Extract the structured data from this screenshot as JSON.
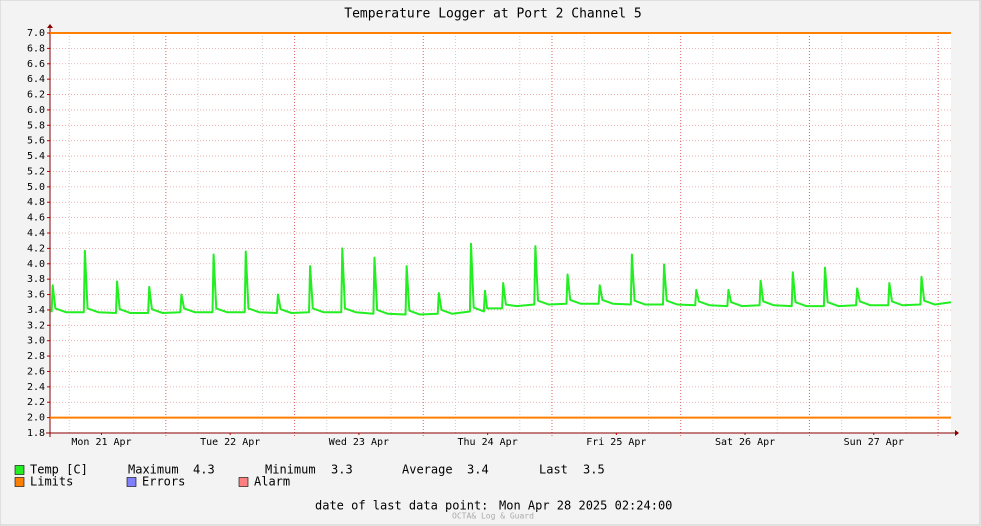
{
  "chart_data": {
    "type": "line",
    "title": "Temperature Logger at Port 2 Channel 5",
    "x": [
      0.3,
      0.5,
      1,
      3,
      6.3,
      6.5,
      7,
      9,
      12.3,
      12.5,
      13,
      15,
      18.3,
      18.5,
      19,
      21,
      24.3,
      24.5,
      25,
      27,
      30.3,
      30.5,
      31,
      33,
      36.3,
      36.5,
      37,
      39,
      42.3,
      42.5,
      43,
      45,
      48.3,
      48.5,
      49,
      51,
      54.3,
      54.5,
      55,
      57,
      60.3,
      60.5,
      61,
      63,
      66.3,
      66.5,
      67,
      69,
      72.3,
      72.5,
      73,
      75,
      78.3,
      78.5,
      79,
      80.9,
      81.1,
      81.5,
      84.3,
      84.5,
      85,
      87,
      90.3,
      90.5,
      91,
      93,
      96.3,
      96.5,
      97,
      99,
      102.3,
      102.5,
      103,
      105,
      108.3,
      108.5,
      109,
      111,
      114.3,
      114.5,
      115,
      117,
      120.3,
      120.5,
      121,
      123,
      126.3,
      126.5,
      127,
      129,
      132.3,
      132.5,
      133,
      135,
      138.3,
      138.5,
      139,
      141,
      144.3,
      144.5,
      145,
      147,
      150.3,
      150.5,
      151,
      153,
      156.3,
      156.5,
      157,
      159,
      162.3,
      162.5,
      163,
      165,
      168
    ],
    "series": [
      {
        "name": "Temp [C]",
        "color": "#22ee22",
        "values": [
          3.37,
          3.72,
          3.42,
          3.37,
          3.37,
          4.17,
          3.42,
          3.37,
          3.36,
          3.77,
          3.41,
          3.36,
          3.36,
          3.7,
          3.41,
          3.36,
          3.37,
          3.6,
          3.42,
          3.37,
          3.37,
          4.12,
          3.42,
          3.37,
          3.37,
          4.16,
          3.42,
          3.37,
          3.36,
          3.6,
          3.41,
          3.36,
          3.37,
          3.97,
          3.42,
          3.37,
          3.37,
          4.2,
          3.42,
          3.37,
          3.35,
          4.08,
          3.4,
          3.35,
          3.34,
          3.97,
          3.39,
          3.34,
          3.35,
          3.62,
          3.4,
          3.35,
          3.38,
          4.26,
          3.43,
          3.38,
          3.65,
          3.42,
          3.42,
          3.75,
          3.47,
          3.45,
          3.47,
          4.23,
          3.52,
          3.47,
          3.48,
          3.86,
          3.53,
          3.48,
          3.48,
          3.72,
          3.53,
          3.48,
          3.47,
          4.12,
          3.52,
          3.47,
          3.47,
          3.99,
          3.52,
          3.47,
          3.46,
          3.66,
          3.51,
          3.46,
          3.45,
          3.66,
          3.5,
          3.45,
          3.46,
          3.78,
          3.51,
          3.46,
          3.45,
          3.89,
          3.5,
          3.45,
          3.45,
          3.95,
          3.5,
          3.45,
          3.46,
          3.68,
          3.51,
          3.46,
          3.46,
          3.75,
          3.51,
          3.46,
          3.47,
          3.83,
          3.52,
          3.47,
          3.5
        ]
      }
    ],
    "limits": {
      "name": "Limits",
      "color": "#ff7f00",
      "values": [
        7,
        2
      ]
    },
    "legend_extra": [
      {
        "name": "Errors",
        "color": "#7f7fff"
      },
      {
        "name": "Alarm",
        "color": "#ff7f7f"
      }
    ],
    "stats": [
      {
        "label": "Maximum",
        "value": 4.3
      },
      {
        "label": "Minimum",
        "value": 3.3
      },
      {
        "label": "Average",
        "value": 3.4
      },
      {
        "label": "Last",
        "value": 3.5
      }
    ],
    "xlim": [
      0,
      168
    ],
    "xticks": [
      {
        "value": 9.6,
        "label": "Mon 21 Apr"
      },
      {
        "value": 33.6,
        "label": "Tue 22 Apr"
      },
      {
        "value": 57.6,
        "label": "Wed 23 Apr"
      },
      {
        "value": 81.6,
        "label": "Thu 24 Apr"
      },
      {
        "value": 105.6,
        "label": "Fri 25 Apr"
      },
      {
        "value": 129.6,
        "label": "Sat 26 Apr"
      },
      {
        "value": 153.6,
        "label": "Sun 27 Apr"
      }
    ],
    "ylim": [
      1.8,
      7
    ],
    "yticks": [
      1.8,
      {
        "value": 2,
        "label": "2.0"
      },
      2.2,
      2.4,
      2.6,
      2.8,
      {
        "value": 3,
        "label": "3.0"
      },
      3.2,
      3.4,
      3.6,
      3.8,
      {
        "value": 4,
        "label": "4.0"
      },
      4.2,
      4.4,
      4.6,
      4.8,
      {
        "value": 5,
        "label": "5.0"
      },
      5.2,
      5.4,
      5.6,
      5.8,
      {
        "value": 6,
        "label": "6.0"
      },
      6.2,
      6.4,
      6.6,
      6.8,
      {
        "value": 7,
        "label": "7.0"
      }
    ],
    "grid": true,
    "footer_label": "date of last data point:",
    "footer_date": "Mon Apr 28 2025 02:24:00",
    "watermark": "OCTA& Log & Guard"
  }
}
